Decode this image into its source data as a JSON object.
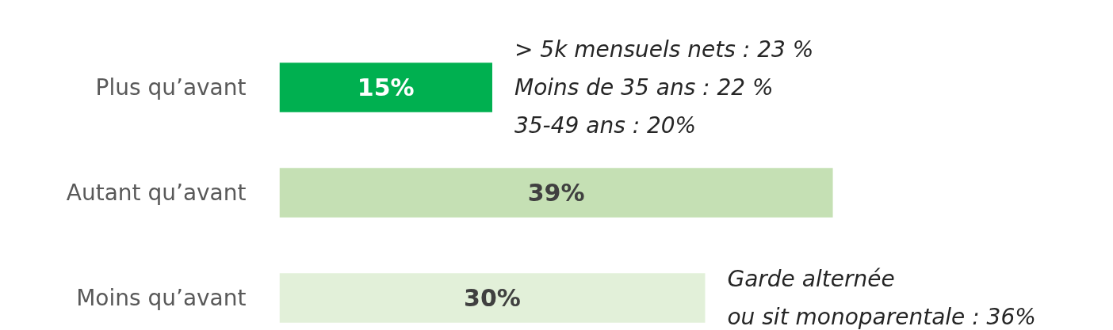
{
  "chart_data": {
    "type": "bar",
    "orientation": "horizontal",
    "categories": [
      "Plus qu’avant",
      "Autant qu’avant",
      "Moins qu’avant"
    ],
    "values": [
      15,
      39,
      30
    ],
    "colors": [
      "#00b050",
      "#c5e0b4",
      "#e2f0d9"
    ],
    "value_labels": [
      "15%",
      "39%",
      "30%"
    ],
    "annotations": [
      {
        "text": "> 5k mensuels nets : 23 %\nMoins de 35 ans : 22 %\n35-49 ans : 20%",
        "x": 15,
        "y": "Plus qu’avant"
      },
      {
        "text": "Garde alternée\nou sit monoparentale : 36%",
        "x": 30,
        "y": "Moins qu’avant"
      }
    ],
    "grid": false
  }
}
